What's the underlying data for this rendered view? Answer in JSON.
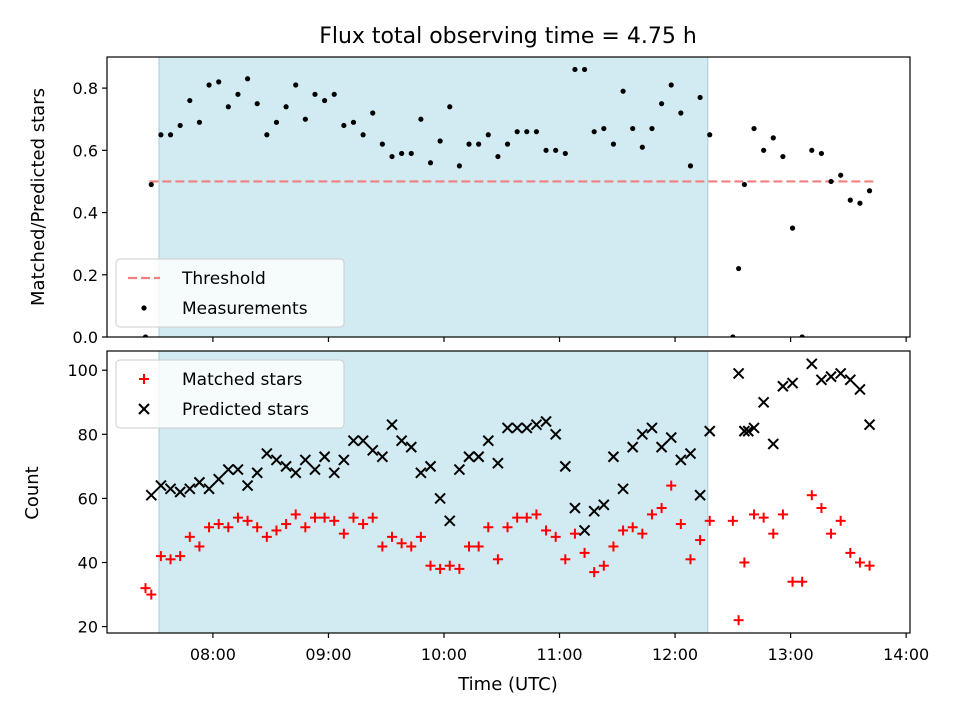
{
  "figure": {
    "title": "Flux total observing time = 4.75 h"
  },
  "chart_data": [
    {
      "type": "scatter",
      "ylabel": "Matched/Predicted stars",
      "xlabel": "",
      "xlim": [
        "07:05",
        "14:02"
      ],
      "ylim": [
        0,
        0.9
      ],
      "yticks": [
        0.0,
        0.2,
        0.4,
        0.6,
        0.8
      ],
      "ytick_labels": [
        "0.0",
        "0.2",
        "0.4",
        "0.6",
        "0.8"
      ],
      "shaded_region": {
        "start": "07:32",
        "end": "12:17",
        "color": "#add8e6"
      },
      "threshold": {
        "name": "Threshold",
        "value": 0.5,
        "start": "07:27",
        "end": "13:44",
        "color": "#f08080"
      },
      "legend": {
        "placement": "lower-left",
        "entries": [
          "Threshold",
          "Measurements"
        ]
      },
      "series": [
        {
          "name": "Measurements",
          "marker": "dot",
          "color": "#000000",
          "x": [
            "07:25",
            "07:28",
            "07:33",
            "07:38",
            "07:43",
            "07:48",
            "07:53",
            "07:58",
            "08:03",
            "08:08",
            "08:13",
            "08:18",
            "08:23",
            "08:28",
            "08:33",
            "08:38",
            "08:43",
            "08:48",
            "08:53",
            "08:58",
            "09:03",
            "09:08",
            "09:13",
            "09:18",
            "09:23",
            "09:28",
            "09:33",
            "09:38",
            "09:43",
            "09:48",
            "09:53",
            "09:58",
            "10:03",
            "10:08",
            "10:13",
            "10:18",
            "10:23",
            "10:28",
            "10:33",
            "10:38",
            "10:43",
            "10:48",
            "10:53",
            "10:58",
            "11:03",
            "11:08",
            "11:13",
            "11:18",
            "11:23",
            "11:28",
            "11:33",
            "11:38",
            "11:43",
            "11:48",
            "11:53",
            "11:58",
            "12:03",
            "12:08",
            "12:13",
            "12:18",
            "12:30",
            "12:33",
            "12:36",
            "12:41",
            "12:46",
            "12:51",
            "12:56",
            "13:01",
            "13:06",
            "13:11",
            "13:16",
            "13:21",
            "13:26",
            "13:31",
            "13:36",
            "13:41"
          ],
          "y": [
            0.0,
            0.49,
            0.65,
            0.65,
            0.68,
            0.76,
            0.69,
            0.81,
            0.82,
            0.74,
            0.78,
            0.83,
            0.75,
            0.65,
            0.69,
            0.74,
            0.81,
            0.7,
            0.78,
            0.76,
            0.78,
            0.68,
            0.69,
            0.65,
            0.72,
            0.62,
            0.58,
            0.59,
            0.59,
            0.7,
            0.56,
            0.63,
            0.74,
            0.55,
            0.62,
            0.62,
            0.65,
            0.58,
            0.62,
            0.66,
            0.66,
            0.66,
            0.6,
            0.6,
            0.59,
            0.86,
            0.86,
            0.66,
            0.67,
            0.62,
            0.79,
            0.67,
            0.61,
            0.67,
            0.75,
            0.81,
            0.72,
            0.55,
            0.77,
            0.65,
            0.0,
            0.22,
            0.49,
            0.67,
            0.6,
            0.64,
            0.58,
            0.35,
            0.0,
            0.6,
            0.59,
            0.5,
            0.52,
            0.44,
            0.43,
            0.47
          ]
        }
      ]
    },
    {
      "type": "scatter",
      "ylabel": "Count",
      "xlabel": "Time (UTC)",
      "xlim": [
        "07:05",
        "14:02"
      ],
      "ylim": [
        18,
        106
      ],
      "yticks": [
        20,
        40,
        60,
        80,
        100
      ],
      "ytick_labels": [
        "20",
        "40",
        "60",
        "80",
        "100"
      ],
      "xticks": [
        "08:00",
        "09:00",
        "10:00",
        "11:00",
        "12:00",
        "13:00",
        "14:00"
      ],
      "shaded_region": {
        "start": "07:32",
        "end": "12:17",
        "color": "#add8e6"
      },
      "legend": {
        "placement": "upper-left",
        "entries": [
          "Matched stars",
          "Predicted stars"
        ]
      },
      "series": [
        {
          "name": "Matched stars",
          "marker": "plus",
          "color": "#ff0000",
          "x": [
            "07:25",
            "07:28",
            "07:33",
            "07:38",
            "07:43",
            "07:48",
            "07:53",
            "07:58",
            "08:03",
            "08:08",
            "08:13",
            "08:18",
            "08:23",
            "08:28",
            "08:33",
            "08:38",
            "08:43",
            "08:48",
            "08:53",
            "08:58",
            "09:03",
            "09:08",
            "09:13",
            "09:18",
            "09:23",
            "09:28",
            "09:33",
            "09:38",
            "09:43",
            "09:48",
            "09:53",
            "09:58",
            "10:03",
            "10:08",
            "10:13",
            "10:18",
            "10:23",
            "10:28",
            "10:33",
            "10:38",
            "10:43",
            "10:48",
            "10:53",
            "10:58",
            "11:03",
            "11:08",
            "11:13",
            "11:18",
            "11:23",
            "11:28",
            "11:33",
            "11:38",
            "11:43",
            "11:48",
            "11:53",
            "11:58",
            "12:03",
            "12:08",
            "12:13",
            "12:18",
            "12:30",
            "12:33",
            "12:36",
            "12:41",
            "12:46",
            "12:51",
            "12:56",
            "13:01",
            "13:06",
            "13:11",
            "13:16",
            "13:21",
            "13:26",
            "13:31",
            "13:36",
            "13:41"
          ],
          "y": [
            32,
            30,
            42,
            41,
            42,
            48,
            45,
            51,
            52,
            51,
            54,
            53,
            51,
            48,
            50,
            52,
            55,
            51,
            54,
            54,
            53,
            49,
            54,
            52,
            54,
            45,
            48,
            46,
            45,
            48,
            39,
            38,
            39,
            38,
            45,
            45,
            51,
            41,
            51,
            54,
            54,
            55,
            50,
            48,
            41,
            49,
            43,
            37,
            39,
            45,
            50,
            51,
            49,
            55,
            57,
            64,
            52,
            41,
            47,
            53,
            53,
            22,
            40,
            55,
            54,
            49,
            55,
            34,
            34,
            61,
            57,
            49,
            53,
            43,
            40,
            39
          ]
        },
        {
          "name": "Predicted stars",
          "marker": "x",
          "color": "#000000",
          "x": [
            "07:28",
            "07:33",
            "07:38",
            "07:43",
            "07:48",
            "07:53",
            "07:58",
            "08:03",
            "08:08",
            "08:13",
            "08:18",
            "08:23",
            "08:28",
            "08:33",
            "08:38",
            "08:43",
            "08:48",
            "08:53",
            "08:58",
            "09:03",
            "09:08",
            "09:13",
            "09:18",
            "09:23",
            "09:28",
            "09:33",
            "09:38",
            "09:43",
            "09:48",
            "09:53",
            "09:58",
            "10:03",
            "10:08",
            "10:13",
            "10:18",
            "10:23",
            "10:28",
            "10:33",
            "10:38",
            "10:43",
            "10:48",
            "10:53",
            "10:58",
            "11:03",
            "11:08",
            "11:13",
            "11:18",
            "11:23",
            "11:28",
            "11:33",
            "11:38",
            "11:43",
            "11:48",
            "11:53",
            "11:58",
            "12:03",
            "12:08",
            "12:13",
            "12:18",
            "12:33",
            "12:36",
            "12:38",
            "12:41",
            "12:46",
            "12:51",
            "12:56",
            "13:01",
            "13:11",
            "13:16",
            "13:21",
            "13:26",
            "13:31",
            "13:36",
            "13:41"
          ],
          "y": [
            61,
            64,
            63,
            62,
            63,
            65,
            63,
            66,
            69,
            69,
            64,
            68,
            74,
            72,
            70,
            68,
            72,
            69,
            73,
            68,
            72,
            78,
            78,
            75,
            73,
            83,
            78,
            76,
            68,
            70,
            60,
            53,
            69,
            73,
            73,
            78,
            71,
            82,
            82,
            82,
            83,
            84,
            80,
            70,
            57,
            50,
            56,
            58,
            73,
            63,
            76,
            80,
            82,
            76,
            79,
            72,
            74,
            61,
            81,
            99,
            81,
            81,
            82,
            90,
            77,
            95,
            96,
            102,
            97,
            98,
            99,
            97,
            94,
            83
          ]
        }
      ]
    }
  ]
}
